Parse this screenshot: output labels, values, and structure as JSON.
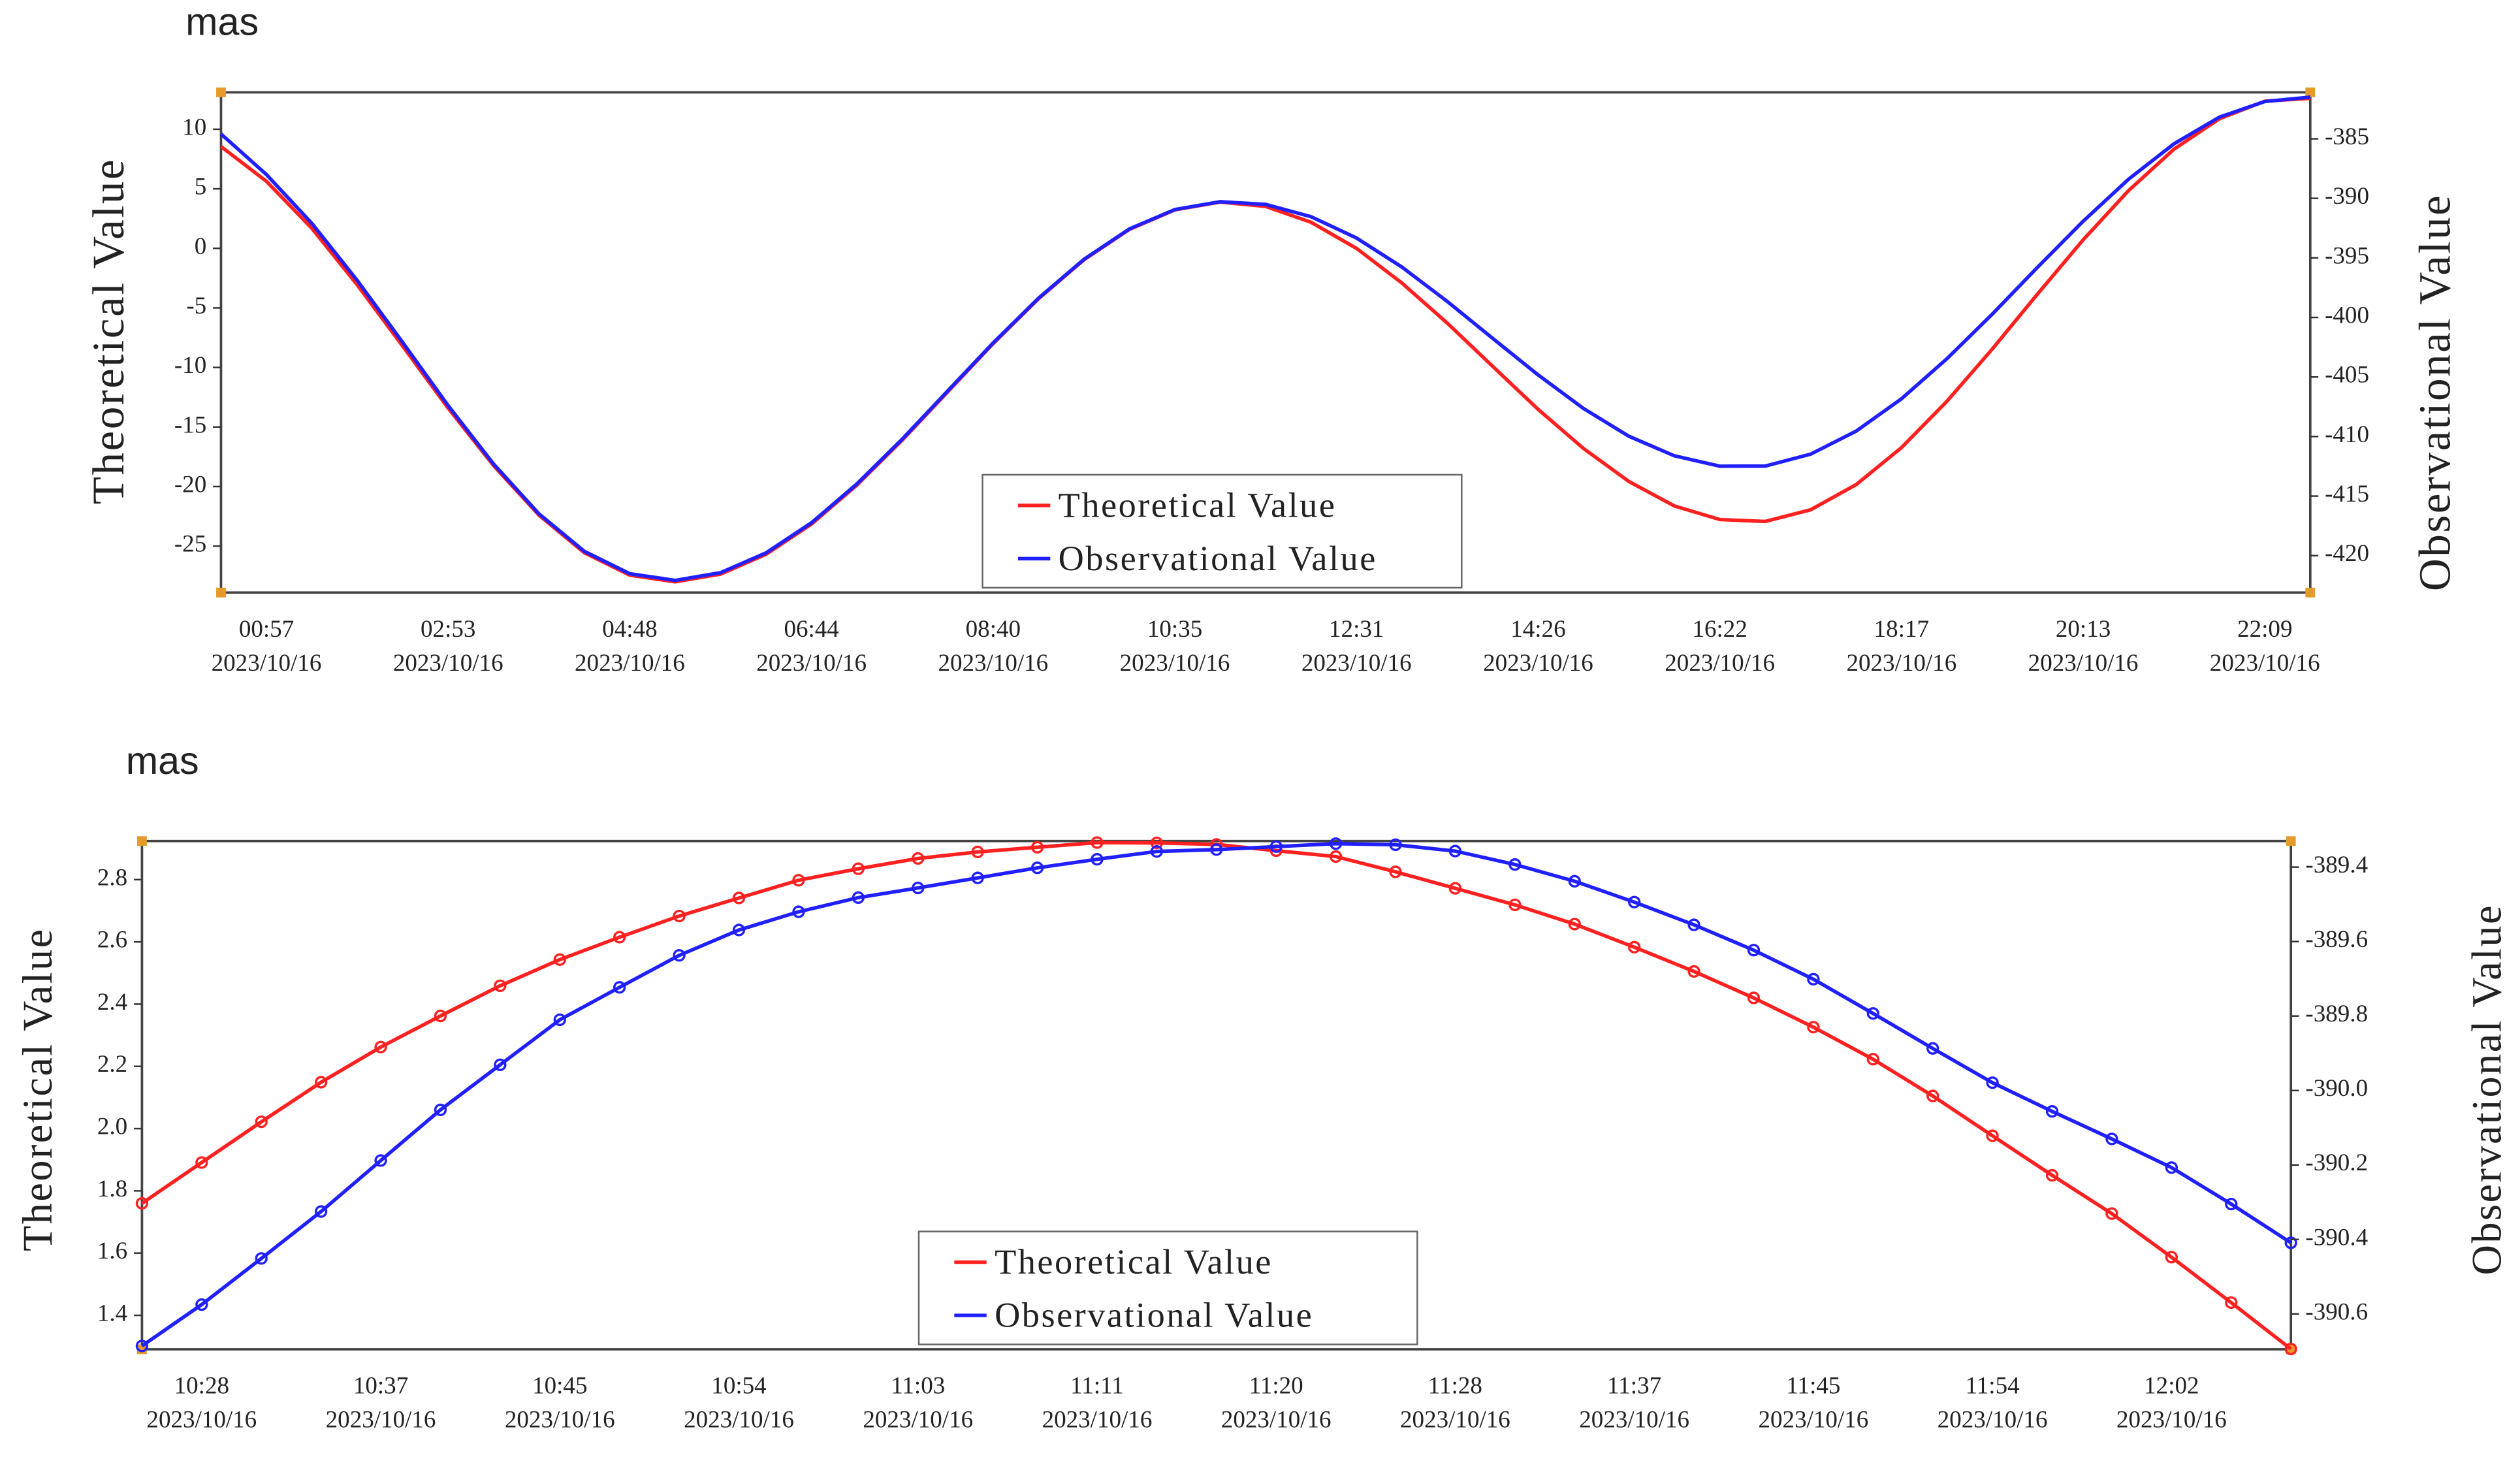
{
  "chart_data": [
    {
      "type": "line",
      "unit": "mas",
      "y_label": "Theoretical Value",
      "y2_label": "Observational Value",
      "categories": [
        null,
        "00:57",
        null,
        null,
        null,
        "02:53",
        null,
        null,
        null,
        "04:48",
        null,
        null,
        null,
        "06:44",
        null,
        null,
        null,
        "08:40",
        null,
        null,
        null,
        "10:35",
        null,
        null,
        null,
        "12:31",
        null,
        null,
        null,
        "14:26",
        null,
        null,
        null,
        "16:22",
        null,
        null,
        null,
        "18:17",
        null,
        null,
        null,
        "20:13",
        null,
        null,
        null,
        "22:09",
        null
      ],
      "category_dates": [
        null,
        "2023/10/16",
        null,
        null,
        null,
        "2023/10/16",
        null,
        null,
        null,
        "2023/10/16",
        null,
        null,
        null,
        "2023/10/16",
        null,
        null,
        null,
        "2023/10/16",
        null,
        null,
        null,
        "2023/10/16",
        null,
        null,
        null,
        "2023/10/16",
        null,
        null,
        null,
        "2023/10/16",
        null,
        null,
        null,
        "2023/10/16",
        null,
        null,
        null,
        "2023/10/16",
        null,
        null,
        null,
        "2023/10/16",
        null,
        null,
        null,
        "2023/10/16",
        null
      ],
      "series": [
        {
          "name": "Theoretical Value",
          "color": "#ff2020",
          "values": [
            8.55,
            5.63,
            1.68,
            -3.07,
            -8.21,
            -13.41,
            -18.24,
            -22.4,
            -25.56,
            -27.44,
            -28.0,
            -27.35,
            -25.69,
            -23.15,
            -19.88,
            -16.1,
            -12.05,
            -8.0,
            -4.23,
            -0.96,
            1.59,
            3.23,
            3.89,
            3.52,
            2.19,
            0.0,
            -2.91,
            -6.28,
            -9.91,
            -13.52,
            -16.81,
            -19.58,
            -21.63,
            -22.77,
            -22.93,
            -21.95,
            -19.84,
            -16.73,
            -12.84,
            -8.45,
            -3.81,
            0.72,
            4.85,
            8.33,
            10.88,
            12.36,
            12.6
          ]
        },
        {
          "name": "Observational Value",
          "color": "#2020ff",
          "axis": "y2",
          "values": [
            -384.6,
            -388.0,
            -392.1,
            -396.9,
            -402.1,
            -407.4,
            -412.3,
            -416.49,
            -419.64,
            -421.52,
            -422.08,
            -421.43,
            -419.77,
            -417.24,
            -413.98,
            -410.21,
            -406.17,
            -402.14,
            -398.38,
            -395.12,
            -392.57,
            -390.94,
            -390.28,
            -390.51,
            -391.54,
            -393.33,
            -395.77,
            -398.66,
            -401.76,
            -404.83,
            -407.65,
            -409.98,
            -411.62,
            -412.49,
            -412.48,
            -411.48,
            -409.55,
            -406.83,
            -403.47,
            -399.72,
            -395.77,
            -391.92,
            -388.39,
            -385.42,
            -383.18,
            -381.87,
            -381.5
          ]
        }
      ],
      "ylim": [
        -28.9,
        13.1
      ],
      "yticks": [
        10,
        5,
        0,
        -5,
        -10,
        -15,
        -20,
        -25
      ],
      "y2lim": [
        -423.1,
        -381.1
      ],
      "y2ticks": [
        -385,
        -390,
        -395,
        -400,
        -405,
        -410,
        -415,
        -420
      ],
      "legend": "bottom",
      "markers": false
    },
    {
      "type": "line",
      "unit": "mas",
      "y_label": "Theoretical Value",
      "y2_label": "Observational Value",
      "categories": [
        null,
        "10:28",
        null,
        null,
        "10:37",
        null,
        null,
        "10:45",
        null,
        null,
        "10:54",
        null,
        null,
        "11:03",
        null,
        null,
        "11:11",
        null,
        null,
        "11:20",
        null,
        null,
        "11:28",
        null,
        null,
        "11:37",
        null,
        null,
        "11:45",
        null,
        null,
        "11:54",
        null,
        null,
        "12:02",
        null,
        null
      ],
      "category_dates": [
        null,
        "2023/10/16",
        null,
        null,
        "2023/10/16",
        null,
        null,
        "2023/10/16",
        null,
        null,
        "2023/10/16",
        null,
        null,
        "2023/10/16",
        null,
        null,
        "2023/10/16",
        null,
        null,
        "2023/10/16",
        null,
        null,
        "2023/10/16",
        null,
        null,
        "2023/10/16",
        null,
        null,
        "2023/10/16",
        null,
        null,
        "2023/10/16",
        null,
        null,
        "2023/10/16",
        null,
        null
      ],
      "series": [
        {
          "name": "Theoretical Value",
          "color": "#ff2020",
          "values": [
            1.76,
            1.891,
            2.022,
            2.149,
            2.262,
            2.362,
            2.459,
            2.543,
            2.615,
            2.683,
            2.741,
            2.798,
            2.835,
            2.868,
            2.889,
            2.904,
            2.919,
            2.918,
            2.913,
            2.893,
            2.874,
            2.825,
            2.772,
            2.719,
            2.657,
            2.583,
            2.505,
            2.42,
            2.326,
            2.223,
            2.105,
            1.977,
            1.85,
            1.727,
            1.587,
            1.441,
            1.292
          ]
        },
        {
          "name": "Observational Value",
          "color": "#2020ff",
          "axis": "y2",
          "values": [
            -390.686,
            -390.575,
            -390.451,
            -390.325,
            -390.188,
            -390.052,
            -389.931,
            -389.81,
            -389.723,
            -389.637,
            -389.569,
            -389.52,
            -389.482,
            -389.456,
            -389.429,
            -389.402,
            -389.379,
            -389.358,
            -389.353,
            -389.345,
            -389.337,
            -389.34,
            -389.357,
            -389.393,
            -389.438,
            -389.494,
            -389.555,
            -389.623,
            -389.701,
            -389.793,
            -389.887,
            -389.979,
            -390.056,
            -390.13,
            -390.207,
            -390.305,
            -390.409
          ]
        }
      ],
      "ylim": [
        1.291,
        2.924
      ],
      "yticks": [
        2.8,
        2.6,
        2.4,
        2.2,
        {
          "value": 2,
          "label": "2.0"
        },
        1.8,
        1.6,
        1.4
      ],
      "y2lim": [
        -390.695,
        -389.33
      ],
      "y2ticks": [
        -389.4,
        -389.6,
        -389.8,
        {
          "value": -390,
          "label": "-390.0"
        },
        -390.2,
        -390.4,
        -390.6
      ],
      "legend": "bottom",
      "markers": true
    }
  ]
}
